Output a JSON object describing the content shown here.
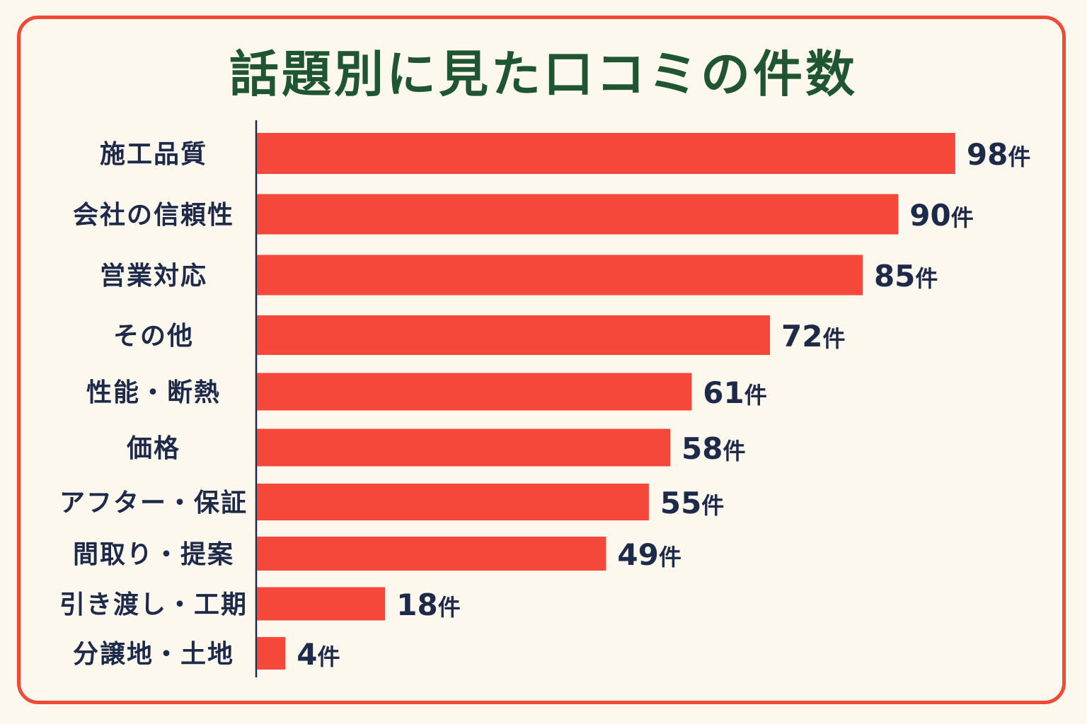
{
  "chart_data": {
    "type": "bar",
    "orientation": "horizontal",
    "title": "話題別に見た口コミの件数",
    "categories": [
      "施工品質",
      "会社の信頼性",
      "営業対応",
      "その他",
      "性能・断熱",
      "価格",
      "アフター・保証",
      "間取り・提案",
      "引き渡し・工期",
      "分譲地・土地"
    ],
    "values": [
      98,
      90,
      85,
      72,
      61,
      58,
      55,
      49,
      18,
      4
    ],
    "value_unit": "件",
    "xlabel": "",
    "ylabel": "",
    "grid": false,
    "legend": "none",
    "colors": {
      "bar": "#f5473a",
      "frame": "#ee4a36",
      "title": "#1f5631",
      "text": "#1e2a4a",
      "background": "#fdf8ee"
    }
  }
}
